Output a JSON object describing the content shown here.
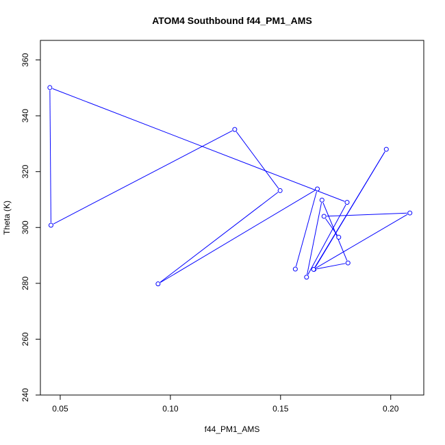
{
  "chart_data": {
    "type": "line",
    "title": "ATOM4 Southbound f44_PM1_AMS",
    "xlabel": "f44_PM1_AMS",
    "ylabel": "Theta (K)",
    "xlim": [
      0.041,
      0.215
    ],
    "ylim": [
      240,
      367
    ],
    "xticks": [
      0.05,
      0.1,
      0.15,
      0.2
    ],
    "xtick_labels": [
      "0.05",
      "0.10",
      "0.15",
      "0.20"
    ],
    "yticks": [
      240,
      260,
      280,
      300,
      320,
      340,
      360
    ],
    "ytick_labels": [
      "240",
      "260",
      "280",
      "300",
      "320",
      "340",
      "360"
    ],
    "grid": false,
    "series": [
      {
        "color": "#0000ff",
        "marker": "open-circle",
        "x": [
          0.1567,
          0.1667,
          0.0944,
          0.1498,
          0.1292,
          0.0458,
          0.0453,
          0.1802,
          0.1618,
          0.1688,
          0.1806,
          0.1652,
          0.198,
          0.165,
          0.2087,
          0.1697,
          0.1764
        ],
        "y": [
          285.1,
          313.8,
          279.8,
          313.2,
          335.1,
          300.8,
          350.1,
          309.0,
          282.2,
          309.8,
          287.3,
          285.0,
          328.0,
          285.0,
          305.2,
          304.0,
          296.5
        ]
      }
    ]
  }
}
